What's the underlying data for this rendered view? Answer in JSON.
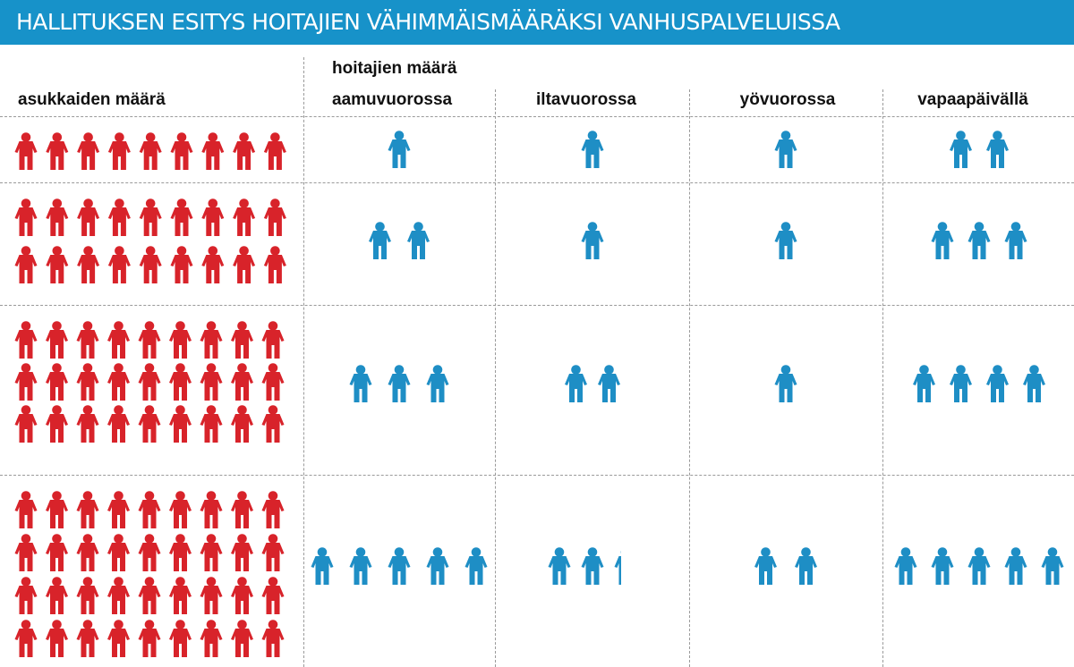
{
  "title": "HALLITUKSEN ESITYS HOITAJIEN VÄHIMMÄISMÄÄRÄKSI VANHUSPALVELUISSA",
  "headers": {
    "residents": "asukkaiden määrä",
    "nurses_group": "hoitajien määrä",
    "columns": [
      "aamuvuorossa",
      "iltavuorossa",
      "yövuorossa",
      "vapaapäivällä"
    ]
  },
  "colors": {
    "banner": "#1792c9",
    "resident_icon": "#d8232a",
    "nurse_icon": "#1e8ec5"
  },
  "icons": {
    "resident": "person-icon",
    "nurse": "person-icon"
  },
  "rows": [
    {
      "residents": 9,
      "morning": 1,
      "evening": 1,
      "night": 1,
      "day_off": 2
    },
    {
      "residents": 18,
      "morning": 2,
      "evening": 1,
      "night": 1,
      "day_off": 3
    },
    {
      "residents": 27,
      "morning": 3,
      "evening": 2,
      "night": 1,
      "day_off": 4
    },
    {
      "residents": 36,
      "morning": 5,
      "evening": 2.5,
      "night": 2,
      "day_off": 5
    }
  ]
}
